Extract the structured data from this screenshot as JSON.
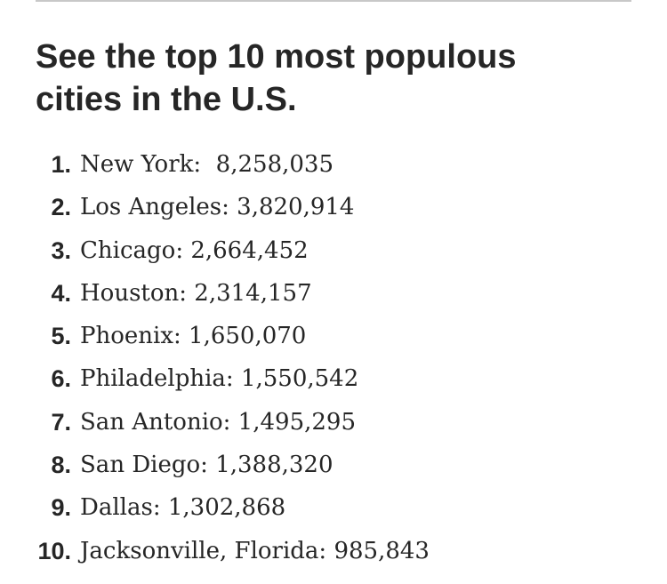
{
  "headline": "See the top 10 most populous cities in the U.S.",
  "cities": [
    {
      "rank": "1.",
      "text": "New York:  8,258,035"
    },
    {
      "rank": "2.",
      "text": "Los Angeles: 3,820,914"
    },
    {
      "rank": "3.",
      "text": "Chicago: 2,664,452"
    },
    {
      "rank": "4.",
      "text": "Houston: 2,314,157"
    },
    {
      "rank": "5.",
      "text": "Phoenix: 1,650,070"
    },
    {
      "rank": "6.",
      "text": "Philadelphia: 1,550,542"
    },
    {
      "rank": "7.",
      "text": "San Antonio: 1,495,295"
    },
    {
      "rank": "8.",
      "text": "San Diego: 1,388,320"
    },
    {
      "rank": "9.",
      "text": "Dallas: 1,302,868"
    },
    {
      "rank": "10.",
      "text": "Jacksonville, Florida: 985,843"
    }
  ]
}
